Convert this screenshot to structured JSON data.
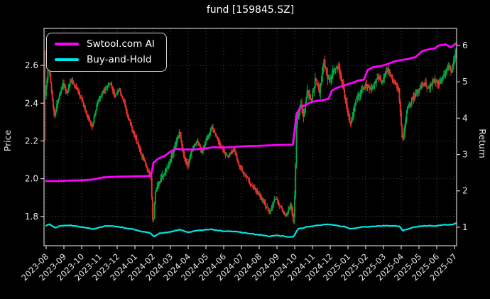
{
  "window": {
    "title": "fund [159845.SZ]"
  },
  "legend": {
    "items": [
      {
        "label": "Swtool.com AI",
        "color": "#ff00ff"
      },
      {
        "label": "Buy-and-Hold",
        "color": "#00e5e5"
      }
    ]
  },
  "chart_data": {
    "type": "candlestick",
    "title": "fund [159845.SZ]",
    "grid": true,
    "legend_position": "upper left",
    "background": "#000000",
    "left_axis": {
      "label": "Price",
      "ticks": [
        1.8,
        2.0,
        2.2,
        2.4,
        2.6
      ],
      "range": [
        1.645,
        2.796
      ]
    },
    "right_axis": {
      "label": "Return",
      "ticks": [
        1,
        2,
        3,
        4,
        5,
        6
      ],
      "range": [
        0.49,
        6.47
      ]
    },
    "x_axis": {
      "tick_labels": [
        "2023-08",
        "2023-09",
        "2023-10",
        "2023-11",
        "2023-12",
        "2024-01",
        "2024-02",
        "2024-03",
        "2024-04",
        "2024-05",
        "2024-06",
        "2024-07",
        "2024-08",
        "2024-09",
        "2024-10",
        "2024-11",
        "2024-12",
        "2025-01",
        "2025-02",
        "2025-03",
        "2025-04",
        "2025-05",
        "2025-06",
        "2025-07"
      ]
    },
    "colors": {
      "up": "#00a843",
      "down": "#e63329",
      "ai_line": "#ff00ff",
      "bh_line": "#00e5e5",
      "grid": "#4f4f4f",
      "spine": "#cccccc",
      "text": "#e8e8e8"
    },
    "first_candle": {
      "open": 2.62,
      "close": 2.44,
      "high": 2.68,
      "low": 2.2
    },
    "price_close_path": [
      [
        0,
        2.5
      ],
      [
        0.15,
        2.6
      ],
      [
        0.45,
        2.33
      ],
      [
        0.7,
        2.43
      ],
      [
        0.95,
        2.5
      ],
      [
        1.15,
        2.46
      ],
      [
        1.4,
        2.52
      ],
      [
        1.7,
        2.47
      ],
      [
        2.0,
        2.43
      ],
      [
        2.3,
        2.33
      ],
      [
        2.6,
        2.28
      ],
      [
        2.9,
        2.41
      ],
      [
        3.3,
        2.47
      ],
      [
        3.6,
        2.5
      ],
      [
        3.85,
        2.44
      ],
      [
        4.1,
        2.47
      ],
      [
        4.4,
        2.4
      ],
      [
        4.7,
        2.3
      ],
      [
        5.0,
        2.22
      ],
      [
        5.3,
        2.14
      ],
      [
        5.6,
        2.08
      ],
      [
        5.9,
        2.0
      ],
      [
        6.02,
        1.74
      ],
      [
        6.15,
        1.93
      ],
      [
        6.4,
        1.99
      ],
      [
        6.7,
        2.04
      ],
      [
        7.0,
        2.1
      ],
      [
        7.3,
        2.19
      ],
      [
        7.5,
        2.24
      ],
      [
        7.75,
        2.12
      ],
      [
        7.95,
        2.07
      ],
      [
        8.25,
        2.16
      ],
      [
        8.5,
        2.2
      ],
      [
        8.75,
        2.14
      ],
      [
        9.05,
        2.21
      ],
      [
        9.35,
        2.27
      ],
      [
        9.65,
        2.21
      ],
      [
        9.95,
        2.15
      ],
      [
        10.25,
        2.11
      ],
      [
        10.55,
        2.16
      ],
      [
        10.85,
        2.07
      ],
      [
        11.2,
        2.02
      ],
      [
        11.6,
        1.96
      ],
      [
        12.0,
        1.91
      ],
      [
        12.3,
        1.87
      ],
      [
        12.6,
        1.82
      ],
      [
        12.9,
        1.9
      ],
      [
        13.2,
        1.85
      ],
      [
        13.5,
        1.8
      ],
      [
        13.75,
        1.86
      ],
      [
        13.97,
        1.78
      ],
      [
        14.1,
        2.28
      ],
      [
        14.3,
        2.4
      ],
      [
        14.5,
        2.33
      ],
      [
        14.7,
        2.46
      ],
      [
        14.95,
        2.42
      ],
      [
        15.15,
        2.52
      ],
      [
        15.4,
        2.46
      ],
      [
        15.65,
        2.62
      ],
      [
        15.9,
        2.52
      ],
      [
        16.15,
        2.56
      ],
      [
        16.45,
        2.59
      ],
      [
        16.75,
        2.48
      ],
      [
        17.0,
        2.34
      ],
      [
        17.15,
        2.29
      ],
      [
        17.45,
        2.42
      ],
      [
        17.75,
        2.46
      ],
      [
        18.05,
        2.5
      ],
      [
        18.35,
        2.47
      ],
      [
        18.65,
        2.54
      ],
      [
        18.95,
        2.52
      ],
      [
        19.25,
        2.58
      ],
      [
        19.55,
        2.52
      ],
      [
        19.85,
        2.47
      ],
      [
        20.07,
        2.19
      ],
      [
        20.35,
        2.37
      ],
      [
        20.65,
        2.43
      ],
      [
        20.95,
        2.47
      ],
      [
        21.25,
        2.51
      ],
      [
        21.55,
        2.48
      ],
      [
        21.85,
        2.52
      ],
      [
        22.15,
        2.5
      ],
      [
        22.45,
        2.56
      ],
      [
        22.7,
        2.6
      ],
      [
        22.85,
        2.57
      ],
      [
        23.1,
        2.68
      ]
    ],
    "series": [
      {
        "name": "Swtool.com AI",
        "axis": "right",
        "color": "#ff00ff",
        "points": [
          [
            0,
            2.27
          ],
          [
            0.6,
            2.27
          ],
          [
            1.2,
            2.28
          ],
          [
            2.0,
            2.29
          ],
          [
            2.6,
            2.31
          ],
          [
            3.0,
            2.35
          ],
          [
            3.2,
            2.37
          ],
          [
            4.0,
            2.39
          ],
          [
            5.0,
            2.4
          ],
          [
            5.9,
            2.41
          ],
          [
            6.05,
            2.78
          ],
          [
            6.3,
            2.88
          ],
          [
            6.7,
            2.97
          ],
          [
            7.0,
            3.08
          ],
          [
            7.3,
            3.16
          ],
          [
            7.7,
            3.14
          ],
          [
            8.3,
            3.14
          ],
          [
            9.0,
            3.17
          ],
          [
            9.4,
            3.2
          ],
          [
            10.0,
            3.19
          ],
          [
            10.6,
            3.21
          ],
          [
            11.2,
            3.23
          ],
          [
            12.0,
            3.24
          ],
          [
            13.0,
            3.26
          ],
          [
            13.9,
            3.27
          ],
          [
            14.1,
            4.12
          ],
          [
            14.3,
            4.28
          ],
          [
            14.6,
            4.36
          ],
          [
            14.9,
            4.44
          ],
          [
            15.2,
            4.47
          ],
          [
            15.6,
            4.5
          ],
          [
            15.9,
            4.53
          ],
          [
            16.1,
            4.76
          ],
          [
            16.4,
            4.84
          ],
          [
            16.9,
            4.92
          ],
          [
            17.3,
            4.98
          ],
          [
            17.6,
            5.04
          ],
          [
            17.9,
            5.06
          ],
          [
            18.1,
            5.32
          ],
          [
            18.4,
            5.4
          ],
          [
            18.9,
            5.44
          ],
          [
            19.3,
            5.5
          ],
          [
            19.6,
            5.56
          ],
          [
            20.0,
            5.6
          ],
          [
            20.4,
            5.63
          ],
          [
            20.8,
            5.68
          ],
          [
            21.2,
            5.85
          ],
          [
            21.6,
            5.9
          ],
          [
            21.9,
            5.92
          ],
          [
            22.1,
            6.0
          ],
          [
            22.5,
            6.03
          ],
          [
            22.8,
            5.95
          ],
          [
            23.1,
            6.06
          ]
        ]
      },
      {
        "name": "Buy-and-Hold",
        "axis": "right",
        "color": "#00e5e5",
        "points": [
          [
            0,
            1.04
          ],
          [
            0.2,
            1.08
          ],
          [
            0.5,
            0.99
          ],
          [
            0.9,
            1.04
          ],
          [
            1.4,
            1.05
          ],
          [
            2.0,
            1.0
          ],
          [
            2.6,
            0.95
          ],
          [
            3.3,
            1.03
          ],
          [
            4.0,
            1.02
          ],
          [
            4.7,
            0.96
          ],
          [
            5.3,
            0.89
          ],
          [
            5.9,
            0.83
          ],
          [
            6.05,
            0.73
          ],
          [
            6.4,
            0.83
          ],
          [
            7.0,
            0.87
          ],
          [
            7.5,
            0.93
          ],
          [
            8.0,
            0.86
          ],
          [
            8.5,
            0.91
          ],
          [
            9.3,
            0.94
          ],
          [
            10.0,
            0.89
          ],
          [
            10.6,
            0.89
          ],
          [
            11.2,
            0.84
          ],
          [
            12.0,
            0.79
          ],
          [
            12.6,
            0.75
          ],
          [
            12.9,
            0.78
          ],
          [
            13.5,
            0.74
          ],
          [
            13.95,
            0.74
          ],
          [
            14.15,
            0.94
          ],
          [
            14.7,
            1.01
          ],
          [
            15.2,
            1.04
          ],
          [
            15.7,
            1.08
          ],
          [
            16.2,
            1.06
          ],
          [
            16.8,
            1.02
          ],
          [
            17.15,
            0.95
          ],
          [
            17.8,
            1.01
          ],
          [
            18.4,
            1.02
          ],
          [
            19.0,
            1.04
          ],
          [
            19.6,
            1.04
          ],
          [
            19.9,
            1.02
          ],
          [
            20.1,
            0.91
          ],
          [
            20.7,
            1.0
          ],
          [
            21.3,
            1.04
          ],
          [
            21.9,
            1.04
          ],
          [
            22.4,
            1.06
          ],
          [
            22.9,
            1.07
          ],
          [
            23.1,
            1.11
          ]
        ]
      }
    ]
  }
}
